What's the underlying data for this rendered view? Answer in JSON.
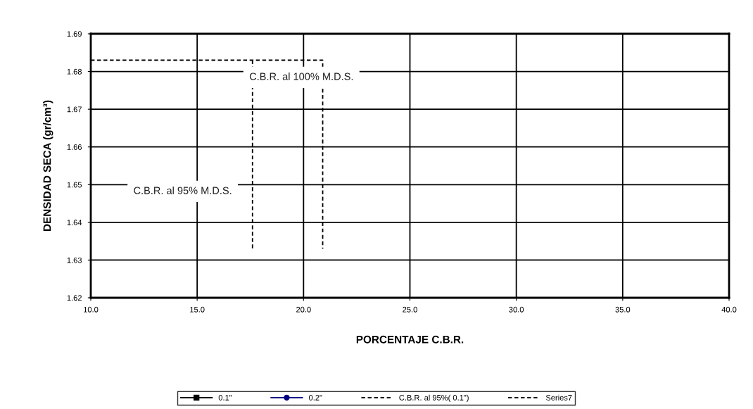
{
  "chart_data": {
    "type": "line",
    "xlabel": "PORCENTAJE C.B.R.",
    "ylabel": "DENSIDAD SECA (gr/cm³)",
    "xlim": [
      10,
      40
    ],
    "xticks": [
      {
        "value": 10,
        "label": "10.0"
      },
      {
        "value": 15,
        "label": "15.0"
      },
      {
        "value": 20,
        "label": "20.0"
      },
      {
        "value": 25,
        "label": "25.0"
      },
      {
        "value": 30,
        "label": "30.0"
      },
      {
        "value": 35,
        "label": "35.0"
      },
      {
        "value": 40,
        "label": "40.0"
      }
    ],
    "ylim": [
      1.62,
      1.69
    ],
    "yticks": [
      1.62,
      1.63,
      1.64,
      1.65,
      1.66,
      1.67,
      1.68,
      1.69
    ],
    "grid": true,
    "legend": "bottom",
    "series": [
      {
        "name": "0.1\"",
        "color": "#000000",
        "marker": "square",
        "line_style": "solid"
      },
      {
        "name": "0.2\"",
        "color": "#000080",
        "marker": "circle",
        "line_style": "solid"
      },
      {
        "name": "C.B.R. al 95%( 0.1\")",
        "color": "#000000",
        "marker": "none",
        "line_style": "dashed",
        "x": [
          17.6,
          17.6
        ],
        "values": [
          1.683,
          1.633
        ]
      },
      {
        "name": "Series7",
        "color": "#000000",
        "marker": "none",
        "line_style": "dashed",
        "x": [
          10,
          20.9,
          20.9
        ],
        "values": [
          1.683,
          1.683,
          1.633
        ]
      }
    ],
    "annotations": [
      "C.B.R. al 100% M.D.S.",
      "C.B.R. al 95% M.D.S."
    ]
  }
}
